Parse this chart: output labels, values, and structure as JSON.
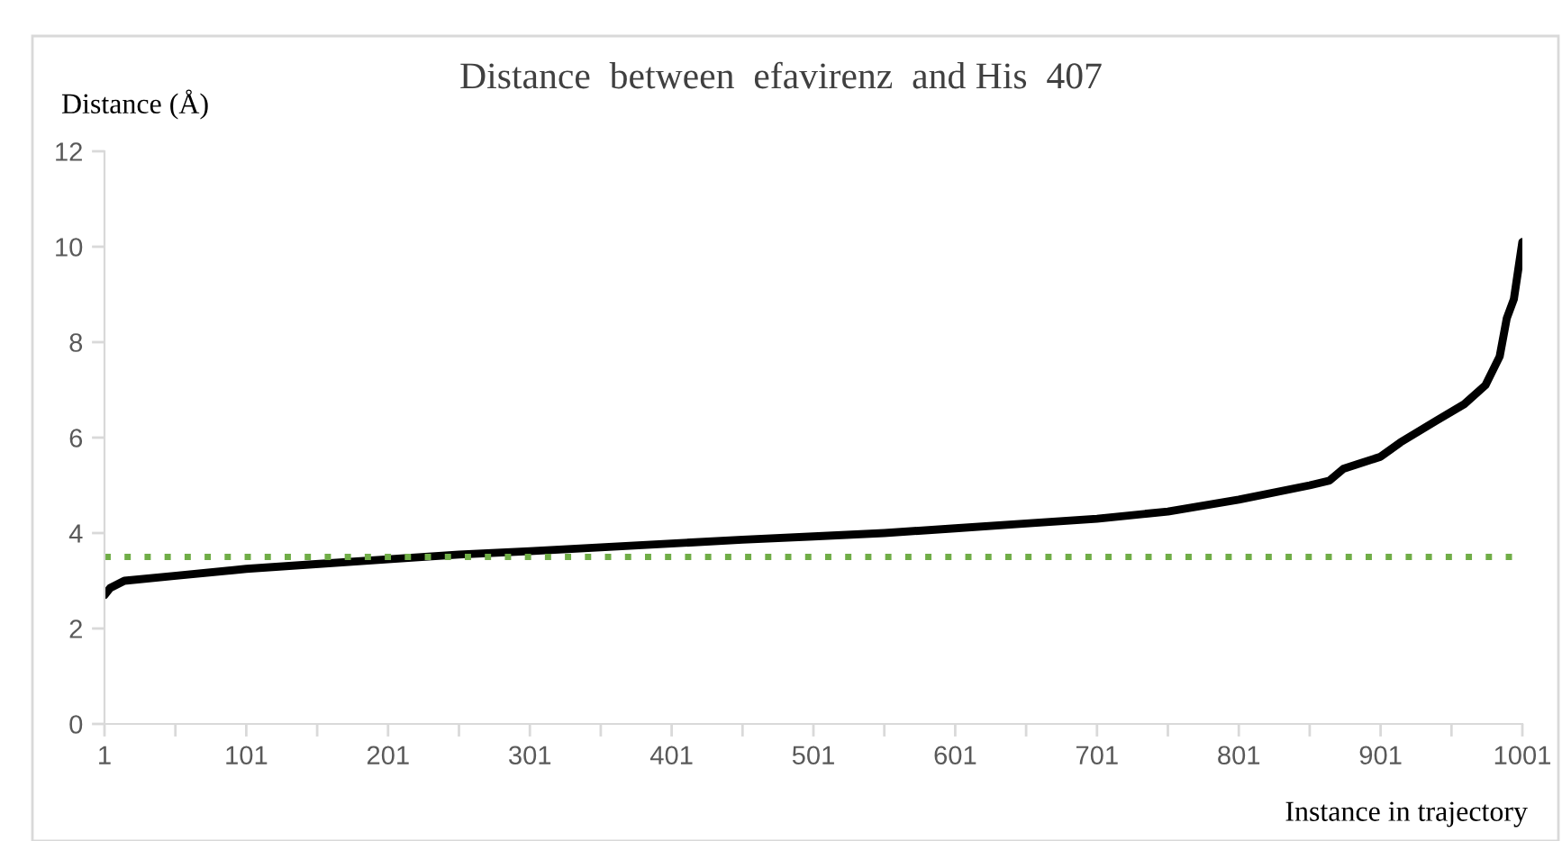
{
  "chart_data": {
    "type": "line",
    "title": "Distance  between  efavirenz  and His  407",
    "xlabel": "Instance in trajectory",
    "ylabel": "Distance (Å)",
    "series": [
      {
        "color": "#000000",
        "x": [
          1,
          5,
          15,
          50,
          101,
          150,
          201,
          251,
          301,
          351,
          401,
          451,
          501,
          551,
          601,
          651,
          701,
          751,
          801,
          851,
          865,
          875,
          901,
          915,
          940,
          960,
          975,
          985,
          990,
          995,
          998,
          1001
        ],
        "values": [
          2.7,
          2.85,
          3.0,
          3.1,
          3.25,
          3.35,
          3.45,
          3.55,
          3.62,
          3.7,
          3.78,
          3.86,
          3.93,
          4.0,
          4.1,
          4.2,
          4.3,
          4.45,
          4.7,
          5.0,
          5.1,
          5.35,
          5.6,
          5.9,
          6.35,
          6.7,
          7.1,
          7.7,
          8.5,
          8.9,
          9.5,
          10.1
        ]
      }
    ],
    "xlim": [
      1,
      1001
    ],
    "xticks": [
      1,
      {
        "value": 51,
        "label": null
      },
      101,
      {
        "value": 151,
        "label": null
      },
      201,
      {
        "value": 251,
        "label": null
      },
      301,
      {
        "value": 351,
        "label": null
      },
      401,
      {
        "value": 451,
        "label": null
      },
      501,
      {
        "value": 551,
        "label": null
      },
      601,
      {
        "value": 651,
        "label": null
      },
      701,
      {
        "value": 751,
        "label": null
      },
      801,
      {
        "value": 851,
        "label": null
      },
      901,
      {
        "value": 951,
        "label": null
      },
      1001
    ],
    "ylim": [
      0,
      12
    ],
    "yticks": [
      0,
      2,
      4,
      6,
      8,
      10,
      12
    ],
    "ref_lines": [
      {
        "axis": "y",
        "value": 3.5,
        "color": "#70ad47",
        "line_style": "dotted"
      }
    ],
    "grid": false,
    "legend": false,
    "marker": "none",
    "line_style": "solid"
  }
}
